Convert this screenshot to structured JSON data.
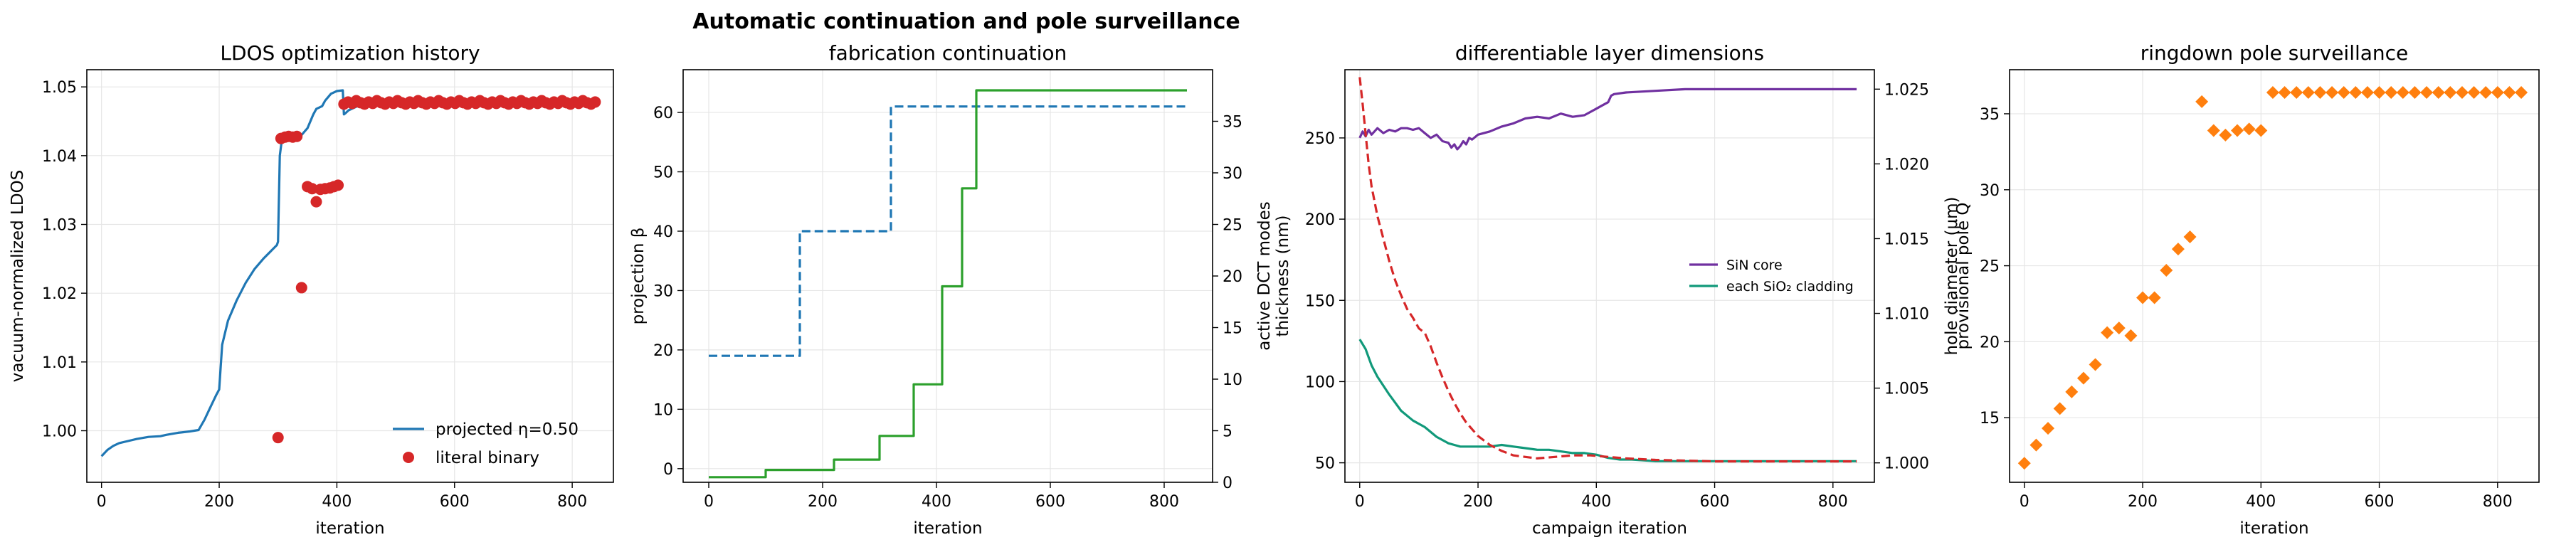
{
  "figure": {
    "suptitle": "Automatic continuation and pole surveillance"
  },
  "chart_data": [
    {
      "type": "line",
      "title": "LDOS optimization history",
      "xlabel": "iteration",
      "ylabel": "vacuum-normalized LDOS",
      "xlim": [
        -25,
        870
      ],
      "ylim": [
        0.9925,
        1.0525
      ],
      "xticks": [
        0,
        200,
        400,
        600,
        800
      ],
      "yticks": [
        1.0,
        1.01,
        1.02,
        1.03,
        1.04,
        1.05
      ],
      "ytick_labels": [
        "1.00",
        "1.01",
        "1.02",
        "1.03",
        "1.04",
        "1.05"
      ],
      "grid": true,
      "legend_position": "lower-right",
      "series": [
        {
          "name": "projected η=0.50",
          "kind": "line",
          "color": "#1f77b4",
          "x": [
            0,
            10,
            20,
            30,
            45,
            60,
            80,
            100,
            110,
            130,
            150,
            165,
            175,
            185,
            195,
            200,
            205,
            215,
            230,
            245,
            260,
            275,
            290,
            298,
            300,
            303,
            306,
            310,
            315,
            320,
            325,
            330,
            335,
            340,
            345,
            350,
            355,
            360,
            365,
            370,
            375,
            380,
            390,
            400,
            410,
            412,
            415,
            420,
            440,
            460,
            500,
            600,
            700,
            800,
            840
          ],
          "y": [
            0.9963,
            0.9972,
            0.9978,
            0.9982,
            0.9985,
            0.9988,
            0.9991,
            0.9992,
            0.9994,
            0.9997,
            0.9999,
            1.0001,
            1.0016,
            1.0034,
            1.0052,
            1.006,
            1.0125,
            1.016,
            1.019,
            1.0215,
            1.0235,
            1.025,
            1.0263,
            1.027,
            1.0275,
            1.04,
            1.042,
            1.0424,
            1.0425,
            1.0426,
            1.0426,
            1.0426,
            1.0426,
            1.043,
            1.0435,
            1.044,
            1.045,
            1.046,
            1.0468,
            1.047,
            1.0472,
            1.048,
            1.049,
            1.0494,
            1.0495,
            1.046,
            1.0462,
            1.0466,
            1.0474,
            1.0476,
            1.0478,
            1.0479,
            1.048,
            1.048,
            1.048
          ]
        },
        {
          "name": "literal binary",
          "kind": "scatter",
          "color": "#d62728",
          "x": [
            300,
            305,
            312,
            318,
            325,
            332,
            340,
            350,
            358,
            365,
            372,
            380,
            388,
            395,
            402
          ],
          "y": [
            0.999,
            1.0425,
            1.0427,
            1.0428,
            1.0427,
            1.0428,
            1.0208,
            1.0355,
            1.0352,
            1.0333,
            1.0351,
            1.0352,
            1.0353,
            1.0355,
            1.0357
          ]
        },
        {
          "name": "",
          "kind": "scatter-dense",
          "color": "#d62728",
          "x_start": 412,
          "x_end": 840,
          "step": 7,
          "y_values": [
            1.0475,
            1.0478,
            1.0476,
            1.048,
            1.0477
          ]
        }
      ]
    },
    {
      "type": "line",
      "title": "fabrication continuation",
      "xlabel": "iteration",
      "ylabel": "projection β",
      "y2label": "active DCT modes",
      "xlim": [
        -45,
        885
      ],
      "ylim": [
        -2.3,
        67.2
      ],
      "y2lim": [
        0,
        40
      ],
      "xticks": [
        0,
        200,
        400,
        600,
        800
      ],
      "yticks": [
        0,
        10,
        20,
        30,
        40,
        50,
        60
      ],
      "y2ticks": [
        0,
        5,
        10,
        15,
        20,
        25,
        30,
        35
      ],
      "grid": true,
      "series": [
        {
          "name": "",
          "kind": "step-dashed",
          "axis": "left",
          "color": "#1f77b4",
          "x": [
            0,
            160,
            160,
            320,
            320,
            840
          ],
          "y": [
            19,
            19,
            40,
            40,
            61,
            61
          ]
        },
        {
          "name": "",
          "kind": "step",
          "axis": "right",
          "color": "#2ca02c",
          "x": [
            0,
            100,
            100,
            220,
            220,
            300,
            300,
            360,
            360,
            410,
            410,
            445,
            445,
            470,
            470,
            840
          ],
          "y": [
            0.5,
            0.5,
            1.2,
            1.2,
            2.2,
            2.2,
            4.5,
            4.5,
            9.5,
            9.5,
            19,
            19,
            28.5,
            28.5,
            38,
            38
          ]
        }
      ]
    },
    {
      "type": "line",
      "title": "differentiable layer dimensions",
      "xlabel": "campaign iteration",
      "ylabel": "thickness (nm)",
      "y2label": "hole diameter (μm)",
      "xlim": [
        -25,
        870
      ],
      "ylim": [
        38,
        292
      ],
      "y2lim": [
        0.9987,
        1.0263
      ],
      "xticks": [
        0,
        200,
        400,
        600,
        800
      ],
      "yticks": [
        50,
        100,
        150,
        200,
        250
      ],
      "y2ticks": [
        1.0,
        1.005,
        1.01,
        1.015,
        1.02,
        1.025
      ],
      "y2tick_labels": [
        "1.000",
        "1.005",
        "1.010",
        "1.015",
        "1.020",
        "1.025"
      ],
      "grid": true,
      "legend_position": "center-right",
      "series": [
        {
          "name": "SiN core",
          "kind": "line",
          "axis": "left",
          "color": "#7030a0",
          "x": [
            0,
            5,
            10,
            15,
            20,
            30,
            40,
            50,
            60,
            70,
            80,
            90,
            100,
            110,
            120,
            130,
            140,
            150,
            155,
            160,
            165,
            170,
            175,
            180,
            185,
            190,
            200,
            220,
            240,
            260,
            280,
            300,
            320,
            340,
            360,
            380,
            400,
            410,
            420,
            425,
            430,
            450,
            500,
            550,
            600,
            700,
            800,
            840
          ],
          "y": [
            250,
            254,
            251,
            255,
            252,
            256,
            253,
            255,
            254,
            256,
            256,
            255,
            256,
            253,
            250,
            252,
            248,
            247,
            244,
            246,
            243,
            245,
            248,
            246,
            250,
            249,
            252,
            254,
            257,
            259,
            262,
            263,
            262,
            265,
            263,
            264,
            268,
            270,
            272,
            276,
            277,
            278,
            279,
            280,
            280,
            280,
            280,
            280
          ]
        },
        {
          "name": "each SiO₂ cladding",
          "kind": "line",
          "axis": "left",
          "color": "#11997a",
          "x": [
            0,
            10,
            20,
            30,
            50,
            70,
            90,
            110,
            130,
            150,
            160,
            170,
            180,
            200,
            220,
            240,
            260,
            280,
            300,
            320,
            340,
            360,
            380,
            400,
            420,
            440,
            460,
            500,
            600,
            700,
            800,
            840
          ],
          "y": [
            126,
            120,
            110,
            103,
            92,
            82,
            76,
            72,
            66,
            62,
            61,
            60,
            60,
            60,
            60,
            61,
            60,
            59,
            58,
            58,
            57,
            56,
            56,
            55,
            53,
            52,
            52,
            51,
            51,
            51,
            51,
            51
          ]
        },
        {
          "name": "",
          "kind": "line-dashed",
          "axis": "right",
          "color": "#d62728",
          "x": [
            0,
            5,
            10,
            15,
            20,
            30,
            40,
            50,
            60,
            70,
            80,
            90,
            100,
            110,
            120,
            130,
            140,
            150,
            160,
            170,
            180,
            200,
            220,
            240,
            260,
            280,
            300,
            330,
            360,
            390,
            420,
            450,
            500,
            600,
            700,
            800,
            840
          ],
          "y": [
            1.0258,
            1.024,
            1.022,
            1.02,
            1.0185,
            1.0165,
            1.015,
            1.0135,
            1.0122,
            1.0112,
            1.0103,
            1.0097,
            1.009,
            1.0087,
            1.0078,
            1.0067,
            1.0057,
            1.0048,
            1.004,
            1.0033,
            1.0027,
            1.0018,
            1.0012,
            1.0008,
            1.0005,
            1.0004,
            1.0003,
            1.0004,
            1.0005,
            1.0005,
            1.0004,
            1.0003,
            1.0002,
            1.0001,
            1.0001,
            1.0001,
            1.0001
          ]
        }
      ]
    },
    {
      "type": "scatter",
      "title": "ringdown pole surveillance",
      "xlabel": "iteration",
      "ylabel": "provisional pole Q",
      "xlim": [
        -25,
        870
      ],
      "ylim": [
        10.75,
        37.9
      ],
      "xticks": [
        0,
        200,
        400,
        600,
        800
      ],
      "yticks": [
        15,
        20,
        25,
        30,
        35
      ],
      "grid": true,
      "series": [
        {
          "name": "",
          "kind": "diamond",
          "color": "#ff7f0e",
          "x": [
            0,
            20,
            40,
            60,
            80,
            100,
            120,
            140,
            160,
            180,
            200,
            220,
            240,
            260,
            280,
            300,
            320,
            340,
            360,
            380,
            400,
            420,
            440,
            460,
            480,
            500,
            520,
            540,
            560,
            580,
            600,
            620,
            640,
            660,
            680,
            700,
            720,
            740,
            760,
            780,
            800,
            820,
            840
          ],
          "y": [
            12.0,
            13.2,
            14.3,
            15.6,
            16.7,
            17.6,
            18.5,
            20.6,
            20.9,
            20.4,
            22.9,
            22.9,
            24.7,
            26.1,
            26.9,
            35.8,
            33.9,
            33.6,
            33.9,
            34.0,
            33.9,
            36.4,
            36.4,
            36.4,
            36.4,
            36.4,
            36.4,
            36.4,
            36.4,
            36.4,
            36.4,
            36.4,
            36.4,
            36.4,
            36.4,
            36.4,
            36.4,
            36.4,
            36.4,
            36.4,
            36.4,
            36.4,
            36.4
          ]
        }
      ]
    }
  ]
}
